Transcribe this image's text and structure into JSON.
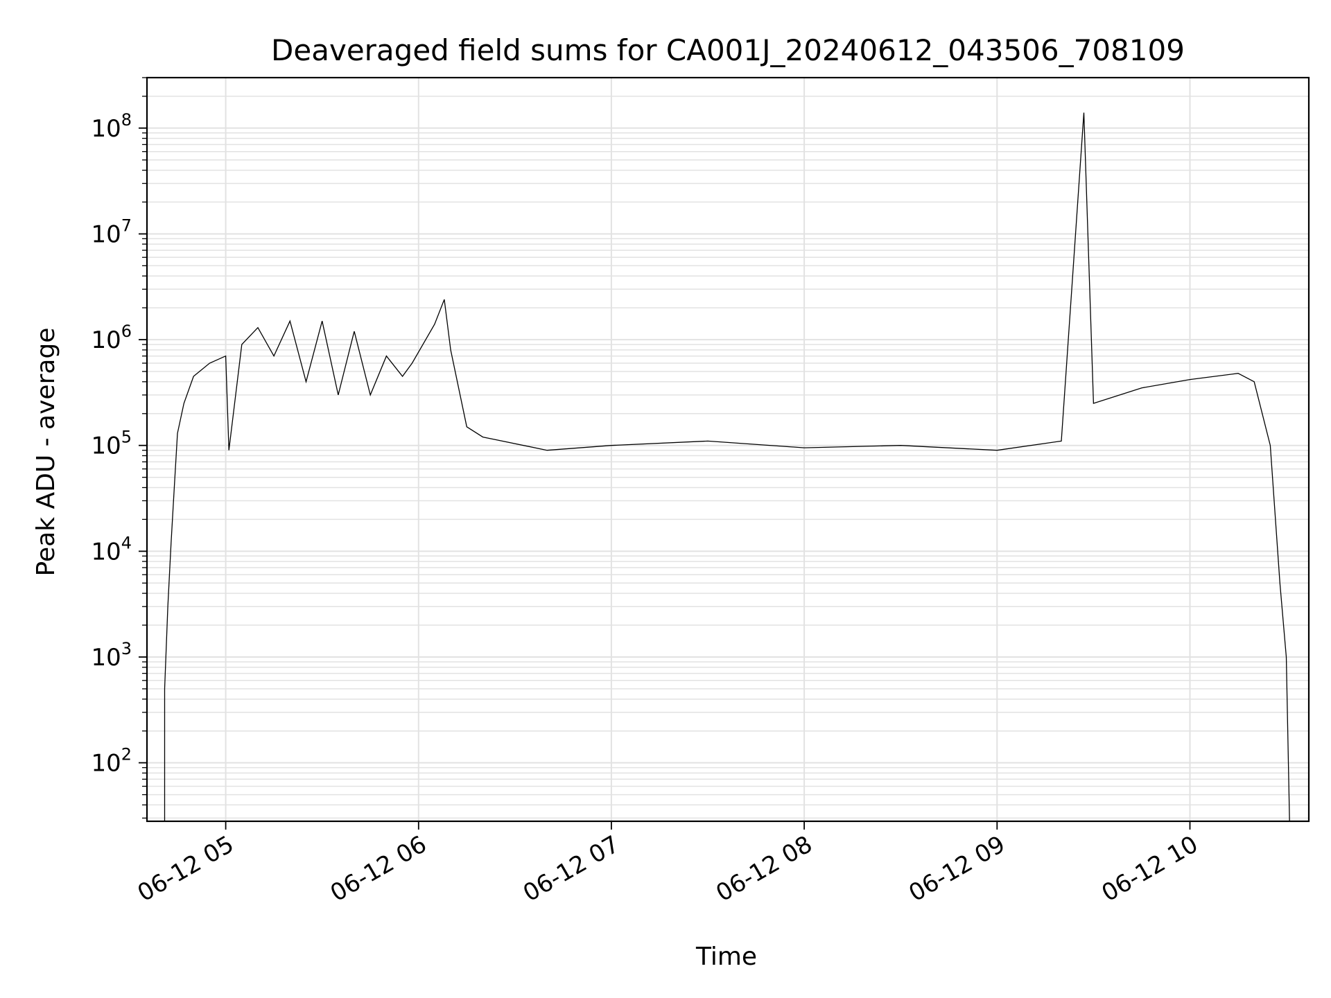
{
  "chart_data": {
    "type": "line",
    "title": "Deaveraged field sums for CA001J_20240612_043506_708109",
    "xlabel": "Time",
    "ylabel": "Peak ADU - average",
    "yscale": "log",
    "xlim": [
      "2024-06-12 04:35:30",
      "2024-06-12 10:37:00"
    ],
    "ylim": [
      28,
      300000000
    ],
    "grid": true,
    "x_ticks": [
      {
        "t": "2024-06-12 05:00",
        "label": "06-12 05"
      },
      {
        "t": "2024-06-12 06:00",
        "label": "06-12 06"
      },
      {
        "t": "2024-06-12 07:00",
        "label": "06-12 07"
      },
      {
        "t": "2024-06-12 08:00",
        "label": "06-12 08"
      },
      {
        "t": "2024-06-12 09:00",
        "label": "06-12 09"
      },
      {
        "t": "2024-06-12 10:00",
        "label": "06-12 10"
      }
    ],
    "y_ticks": [
      {
        "value": 100,
        "base": "10",
        "exp": "2"
      },
      {
        "value": 1000,
        "base": "10",
        "exp": "3"
      },
      {
        "value": 10000,
        "base": "10",
        "exp": "4"
      },
      {
        "value": 100000,
        "base": "10",
        "exp": "5"
      },
      {
        "value": 1000000,
        "base": "10",
        "exp": "6"
      },
      {
        "value": 10000000,
        "base": "10",
        "exp": "7"
      },
      {
        "value": 100000000,
        "base": "10",
        "exp": "8"
      }
    ],
    "series": [
      {
        "color": "#000000",
        "points": [
          [
            "2024-06-12 04:41",
            28
          ],
          [
            "2024-06-12 04:41",
            500
          ],
          [
            "2024-06-12 04:42",
            3000
          ],
          [
            "2024-06-12 04:43",
            12000
          ],
          [
            "2024-06-12 04:44",
            40000
          ],
          [
            "2024-06-12 04:45",
            130000
          ],
          [
            "2024-06-12 04:47",
            250000
          ],
          [
            "2024-06-12 04:50",
            450000
          ],
          [
            "2024-06-12 04:55",
            600000
          ],
          [
            "2024-06-12 05:00",
            700000
          ],
          [
            "2024-06-12 05:01",
            90000
          ],
          [
            "2024-06-12 05:05",
            900000
          ],
          [
            "2024-06-12 05:10",
            1300000
          ],
          [
            "2024-06-12 05:15",
            700000
          ],
          [
            "2024-06-12 05:20",
            1500000
          ],
          [
            "2024-06-12 05:25",
            400000
          ],
          [
            "2024-06-12 05:30",
            1500000
          ],
          [
            "2024-06-12 05:35",
            300000
          ],
          [
            "2024-06-12 05:40",
            1200000
          ],
          [
            "2024-06-12 05:45",
            300000
          ],
          [
            "2024-06-12 05:50",
            700000
          ],
          [
            "2024-06-12 05:55",
            450000
          ],
          [
            "2024-06-12 05:58",
            600000
          ],
          [
            "2024-06-12 06:05",
            1400000
          ],
          [
            "2024-06-12 06:08",
            2400000
          ],
          [
            "2024-06-12 06:10",
            800000
          ],
          [
            "2024-06-12 06:15",
            150000
          ],
          [
            "2024-06-12 06:20",
            120000
          ],
          [
            "2024-06-12 06:40",
            90000
          ],
          [
            "2024-06-12 07:00",
            100000
          ],
          [
            "2024-06-12 07:30",
            110000
          ],
          [
            "2024-06-12 08:00",
            95000
          ],
          [
            "2024-06-12 08:30",
            100000
          ],
          [
            "2024-06-12 09:00",
            90000
          ],
          [
            "2024-06-12 09:20",
            110000
          ],
          [
            "2024-06-12 09:27",
            140000000
          ],
          [
            "2024-06-12 09:30",
            250000
          ],
          [
            "2024-06-12 09:45",
            350000
          ],
          [
            "2024-06-12 10:00",
            420000
          ],
          [
            "2024-06-12 10:15",
            480000
          ],
          [
            "2024-06-12 10:20",
            400000
          ],
          [
            "2024-06-12 10:25",
            100000
          ],
          [
            "2024-06-12 10:28",
            5000
          ],
          [
            "2024-06-12 10:30",
            1000
          ],
          [
            "2024-06-12 10:31",
            28
          ]
        ]
      }
    ]
  }
}
